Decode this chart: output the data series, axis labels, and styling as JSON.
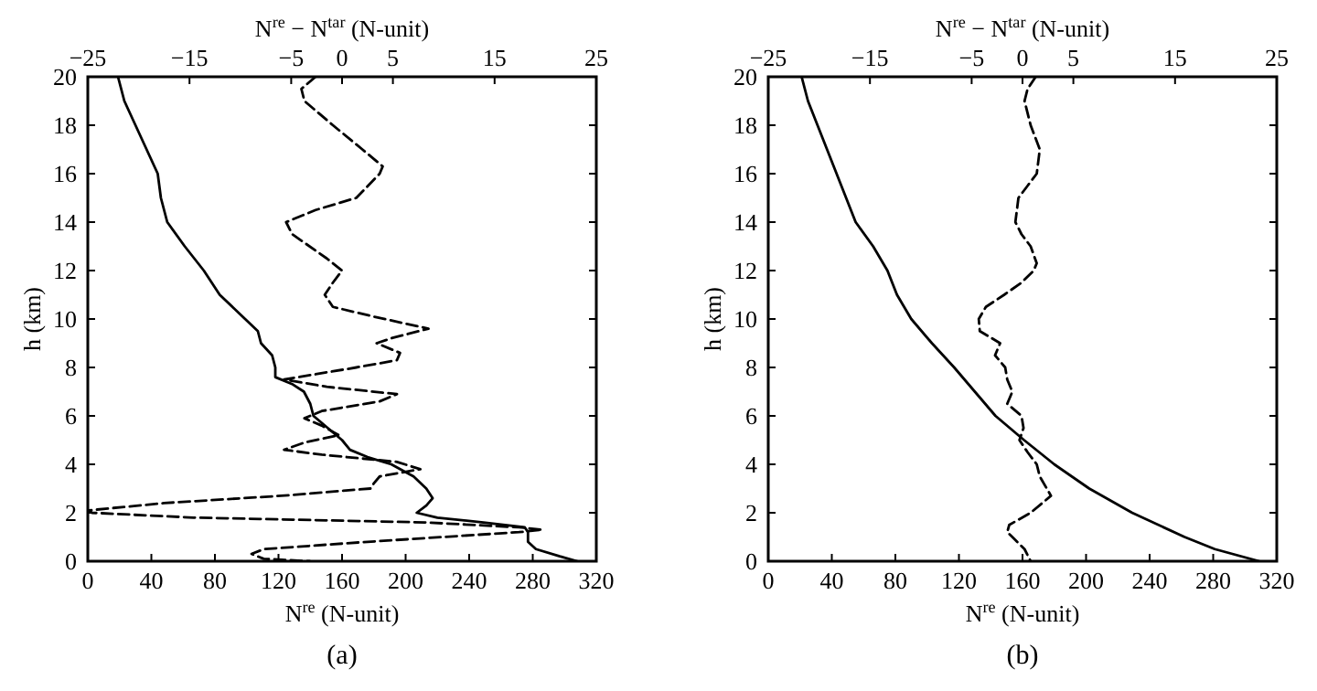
{
  "chart_data": [
    {
      "type": "line",
      "annotations": [
        "(a)"
      ],
      "xlabel": "N$^{re}$ (N-unit)",
      "x2label": "N$^{re}$ − N$^{tar}$ (N-unit)",
      "ylabel": "h (km)",
      "xlim": [
        0,
        320
      ],
      "xticks": [
        0,
        40,
        80,
        120,
        160,
        200,
        240,
        280,
        320
      ],
      "x2lim": [
        -25,
        25
      ],
      "x2ticks": [
        {
          "value": -25,
          "label": "−25"
        },
        {
          "value": -15,
          "label": "−15"
        },
        {
          "value": -5,
          "label": "−5"
        },
        0,
        5,
        15,
        25
      ],
      "ylim": [
        0,
        20
      ],
      "yticks": [
        0,
        2,
        4,
        6,
        8,
        10,
        12,
        14,
        16,
        18,
        20
      ],
      "grid": false,
      "marker": "none",
      "series": [
        {
          "color": "#000000",
          "line_style": "solid",
          "x": [
            19,
            23,
            30,
            37,
            44,
            46,
            50,
            61,
            73,
            83,
            99,
            107,
            109,
            116,
            118,
            118,
            129,
            136,
            140,
            142,
            151,
            160,
            165,
            176,
            191,
            205,
            213,
            217,
            213,
            207,
            220,
            249,
            275,
            277,
            277,
            282,
            297,
            308
          ],
          "values": [
            20,
            19,
            18,
            17,
            16,
            15,
            14,
            13,
            12,
            11,
            10,
            9.5,
            9,
            8.5,
            8,
            7.6,
            7.3,
            7,
            6.5,
            6,
            5.5,
            5,
            4.6,
            4.3,
            4,
            3.5,
            3,
            2.6,
            2.3,
            2,
            1.8,
            1.6,
            1.4,
            1.2,
            0.8,
            0.5,
            0.2,
            0
          ]
        },
        {
          "color": "#000000",
          "line_style": "dashed",
          "axis": "x2",
          "x": [
            -2.6,
            -4.0,
            -3.7,
            -0.9,
            2.0,
            4.0,
            3.7,
            1.4,
            -2.6,
            -5.5,
            -4.9,
            -1.5,
            0,
            -0.9,
            -1.7,
            -0.9,
            3.1,
            8.5,
            4.8,
            3.4,
            5.7,
            5.4,
            1.4,
            -5.7,
            -1.5,
            5.4,
            3.7,
            -2.0,
            -3.7,
            -2.0,
            -0.3,
            -3.7,
            -5.7,
            -2.0,
            5.4,
            7.7,
            3.7,
            3.1,
            2.8,
            -6.0,
            -17.5,
            -24.9,
            -24.6,
            -14.6,
            8.3,
            17.4,
            19.7,
            17.4,
            2.5,
            -7.7,
            -8.9,
            -7.7,
            -3.2
          ],
          "values": [
            20,
            19.5,
            19,
            18,
            17,
            16.3,
            16,
            15,
            14.5,
            14,
            13.5,
            12.5,
            12,
            11.5,
            11,
            10.5,
            10.1,
            9.6,
            9.2,
            9.0,
            8.6,
            8.3,
            8.0,
            7.5,
            7.2,
            6.9,
            6.6,
            6.2,
            5.9,
            5.6,
            5.2,
            4.9,
            4.6,
            4.4,
            4.1,
            3.8,
            3.5,
            3.2,
            3.0,
            2.7,
            2.4,
            2.1,
            2.0,
            1.8,
            1.6,
            1.4,
            1.3,
            1.2,
            0.8,
            0.5,
            0.3,
            0.1,
            0
          ]
        }
      ]
    },
    {
      "type": "line",
      "annotations": [
        "(b)"
      ],
      "xlabel": "N$^{re}$ (N-unit)",
      "x2label": "N$^{re}$ − N$^{tar}$ (N-unit)",
      "ylabel": "h (km)",
      "xlim": [
        0,
        320
      ],
      "xticks": [
        0,
        40,
        80,
        120,
        160,
        200,
        240,
        280,
        320
      ],
      "x2lim": [
        -25,
        25
      ],
      "x2ticks": [
        {
          "value": -25,
          "label": "−25"
        },
        {
          "value": -15,
          "label": "−15"
        },
        {
          "value": -5,
          "label": "−5"
        },
        0,
        5,
        15,
        25
      ],
      "ylim": [
        0,
        20
      ],
      "yticks": [
        0,
        2,
        4,
        6,
        8,
        10,
        12,
        14,
        16,
        18,
        20
      ],
      "grid": false,
      "marker": "none",
      "series": [
        {
          "color": "#000000",
          "line_style": "solid",
          "x": [
            21,
            25,
            31,
            37,
            43,
            49,
            55,
            66,
            75,
            81,
            90,
            103,
            117,
            130,
            143,
            161,
            180,
            202,
            229,
            262,
            281,
            309
          ],
          "values": [
            20,
            19,
            18,
            17,
            16,
            15,
            14,
            13,
            12,
            11,
            10,
            9,
            8,
            7,
            6,
            5,
            4,
            3,
            2,
            1,
            0.5,
            0
          ]
        },
        {
          "color": "#000000",
          "line_style": "dashed",
          "axis": "x2",
          "x": [
            1.3,
            0.5,
            0.2,
            0.8,
            1.7,
            1.4,
            0.5,
            -0.4,
            -0.7,
            -0.1,
            0.8,
            1.4,
            1.1,
            -0.1,
            -1.8,
            -3.6,
            -4.3,
            -4.2,
            -2.2,
            -2.7,
            -1.7,
            -1.5,
            -1.0,
            -1.5,
            -0.1,
            0.1,
            -0.3,
            0.5,
            1.4,
            1.7,
            2.8,
            0.8,
            -1.3,
            -1.5,
            -1.0,
            0.2,
            0.8
          ],
          "values": [
            20,
            19.5,
            19,
            18,
            17,
            16,
            15.5,
            15,
            14,
            13.5,
            13,
            12.3,
            12,
            11.5,
            11,
            10.5,
            10,
            9.5,
            9,
            8.5,
            8,
            7.5,
            7,
            6.5,
            6,
            5.5,
            5,
            4.5,
            4,
            3.5,
            2.7,
            2,
            1.5,
            1.2,
            1,
            0.5,
            0
          ]
        }
      ]
    }
  ]
}
